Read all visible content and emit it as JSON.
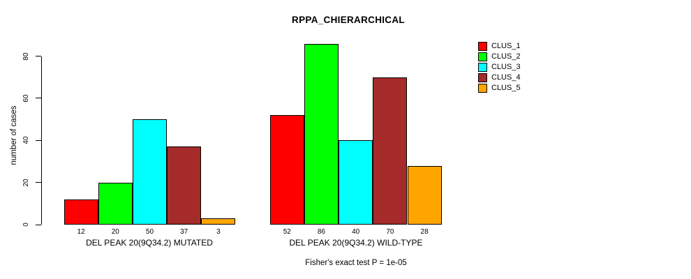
{
  "title": "RPPA_CHIERARCHICAL",
  "footer": "Fisher's exact test P = 1e-05",
  "y_axis": {
    "label": "number of cases",
    "ticks": [
      0,
      20,
      40,
      60,
      80
    ]
  },
  "legend": {
    "position": "right",
    "items": [
      "CLUS_1",
      "CLUS_2",
      "CLUS_3",
      "CLUS_4",
      "CLUS_5"
    ]
  },
  "chart_data": {
    "type": "bar",
    "title": "RPPA_CHIERARCHICAL",
    "xlabel": "",
    "ylabel": "number of cases",
    "ylim": [
      0,
      80
    ],
    "grid": false,
    "legend_position": "right",
    "bar_value_labels": true,
    "categories": [
      "DEL PEAK 20(9Q34.2) MUTATED",
      "DEL PEAK 20(9Q34.2) WILD-TYPE"
    ],
    "series": [
      {
        "name": "CLUS_1",
        "color": "#FF0000",
        "values": [
          12,
          52
        ]
      },
      {
        "name": "CLUS_2",
        "color": "#00FF00",
        "values": [
          20,
          86
        ]
      },
      {
        "name": "CLUS_3",
        "color": "#00FFFF",
        "values": [
          50,
          40
        ]
      },
      {
        "name": "CLUS_4",
        "color": "#A52A2A",
        "values": [
          37,
          70
        ]
      },
      {
        "name": "CLUS_5",
        "color": "#FFA500",
        "values": [
          3,
          28
        ]
      }
    ],
    "annotation": "Fisher's exact test P = 1e-05"
  }
}
